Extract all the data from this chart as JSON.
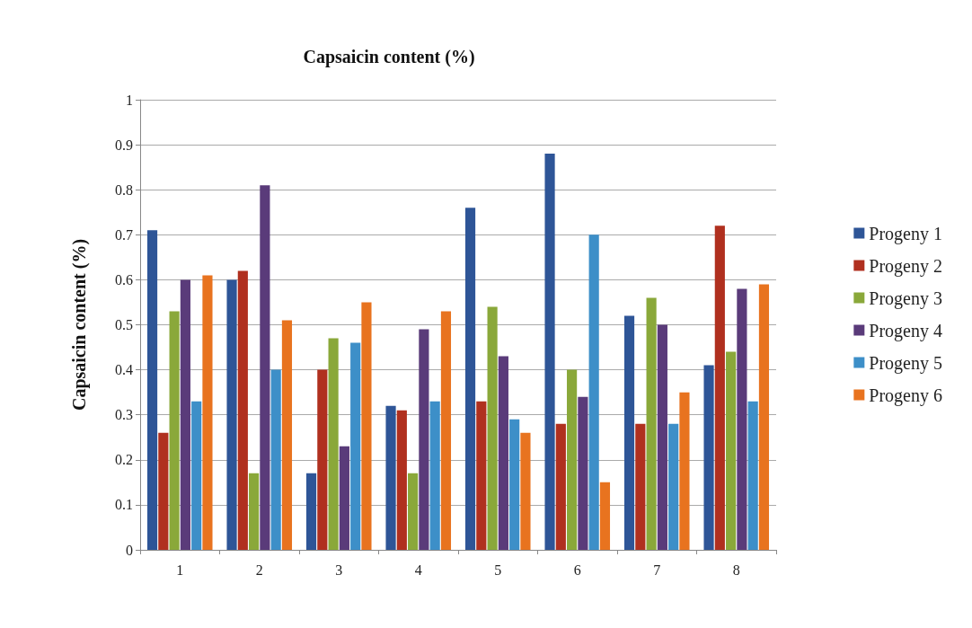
{
  "chart_data": {
    "type": "bar",
    "title": "Capsaicin content (%)",
    "ylabel": "Capsaicin content (%)",
    "categories": [
      "1",
      "2",
      "3",
      "4",
      "5",
      "6",
      "7",
      "8"
    ],
    "series": [
      {
        "name": "Progeny 1",
        "color": "#2e5597",
        "values": [
          0.71,
          0.6,
          0.17,
          0.32,
          0.76,
          0.88,
          0.52,
          0.41
        ]
      },
      {
        "name": "Progeny 2",
        "color": "#b0301f",
        "values": [
          0.26,
          0.62,
          0.4,
          0.31,
          0.33,
          0.28,
          0.28,
          0.72
        ]
      },
      {
        "name": "Progeny 3",
        "color": "#8aa83a",
        "values": [
          0.53,
          0.17,
          0.47,
          0.17,
          0.54,
          0.4,
          0.56,
          0.44
        ]
      },
      {
        "name": "Progeny 4",
        "color": "#5a3b7a",
        "values": [
          0.6,
          0.81,
          0.23,
          0.49,
          0.43,
          0.34,
          0.5,
          0.58
        ]
      },
      {
        "name": "Progeny 5",
        "color": "#3d8fc8",
        "values": [
          0.33,
          0.4,
          0.46,
          0.33,
          0.29,
          0.7,
          0.28,
          0.33
        ]
      },
      {
        "name": "Progeny 6",
        "color": "#e8731f",
        "values": [
          0.61,
          0.51,
          0.55,
          0.53,
          0.26,
          0.15,
          0.35,
          0.59
        ]
      }
    ],
    "ylim": [
      0,
      1
    ],
    "yticks": [
      0,
      0.1,
      0.2,
      0.3,
      0.4,
      0.5,
      0.6,
      0.7,
      0.8,
      0.9,
      1
    ],
    "grid": "y",
    "legend": "right"
  }
}
